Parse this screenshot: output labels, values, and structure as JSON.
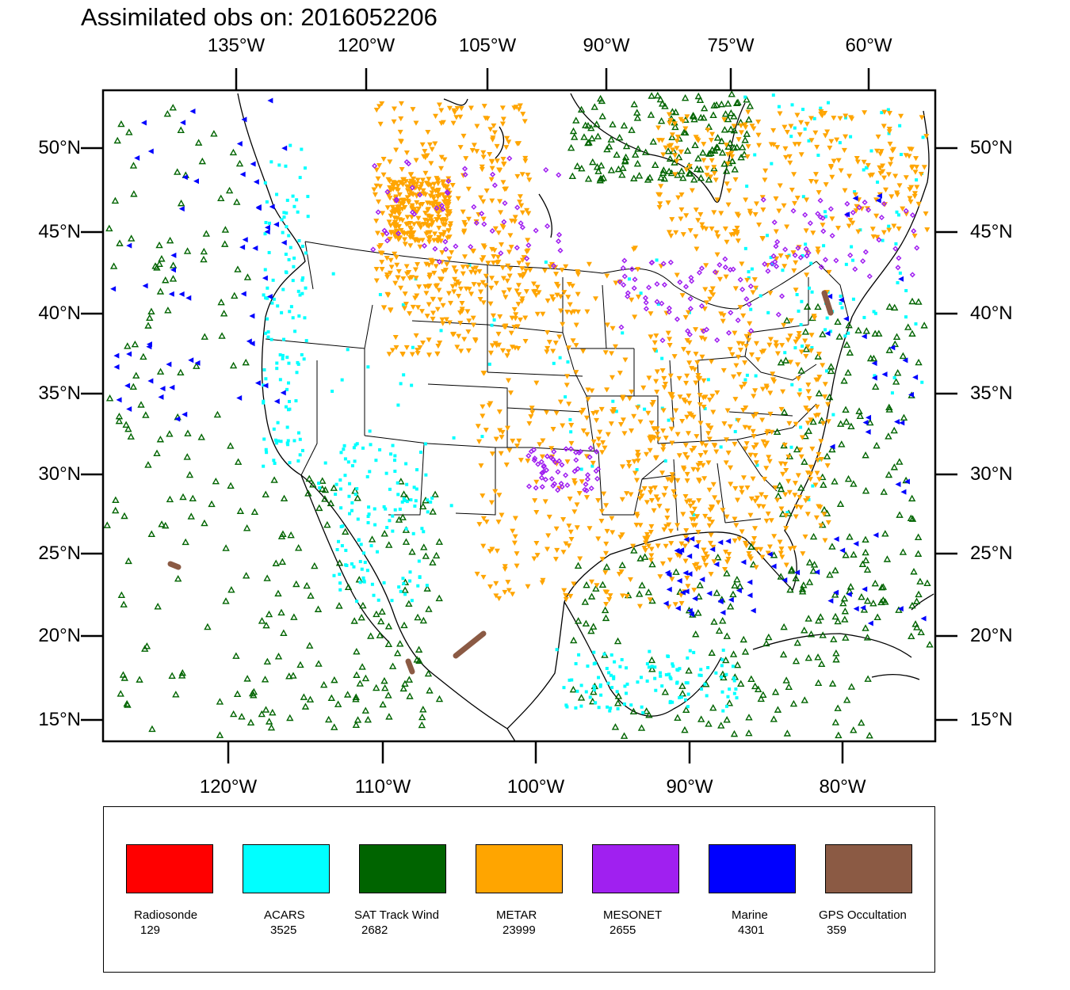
{
  "title": "Assimilated obs on: 2016052206",
  "axes": {
    "top_lon_labels": [
      "135°W",
      "120°W",
      "105°W",
      "90°W",
      "75°W",
      "60°W"
    ],
    "bottom_lon_labels": [
      "120°W",
      "110°W",
      "100°W",
      "90°W",
      "80°W"
    ],
    "left_lat_labels": [
      "50°N",
      "45°N",
      "40°N",
      "35°N",
      "30°N",
      "25°N",
      "20°N",
      "15°N"
    ],
    "right_lat_labels": [
      "50°N",
      "45°N",
      "40°N",
      "35°N",
      "30°N",
      "25°N",
      "20°N",
      "15°N"
    ]
  },
  "legend": [
    {
      "name": "Radiosonde",
      "count": "129",
      "color": "#ff0000"
    },
    {
      "name": "ACARS",
      "count": "3525",
      "color": "#00ffff"
    },
    {
      "name": "SAT Track Wind",
      "count": "2682",
      "color": "#006400"
    },
    {
      "name": "METAR",
      "count": "23999",
      "color": "#ffa500"
    },
    {
      "name": "MESONET",
      "count": "2655",
      "color": "#a020f0"
    },
    {
      "name": "Marine",
      "count": "4301",
      "color": "#0000ff"
    },
    {
      "name": "GPS Occultation",
      "count": "359",
      "color": "#8b5a44"
    }
  ],
  "map_data": {
    "projection": "Lambert conformal, CONUS domain",
    "lat_range_deg_N": [
      14,
      53
    ],
    "lon_range_deg_W": [
      128,
      73
    ],
    "observation_types": [
      "Radiosonde",
      "ACARS",
      "SAT Track Wind",
      "METAR",
      "MESONET",
      "Marine",
      "GPS Occultation"
    ]
  }
}
